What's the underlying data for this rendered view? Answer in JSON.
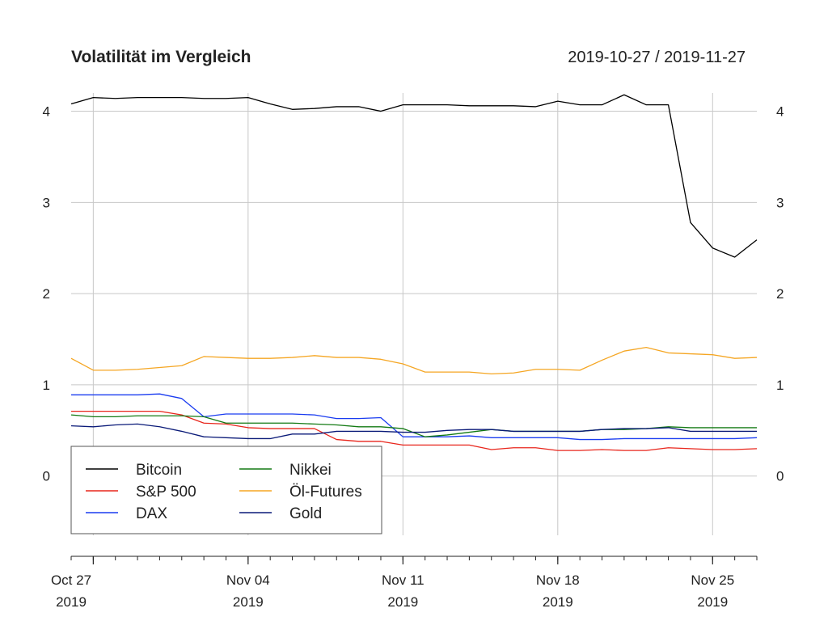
{
  "chart_data": {
    "type": "line",
    "title": "Volatilität im Vergleich",
    "date_range": "2019-10-27 / 2019-11-27",
    "xlabel": "",
    "ylabel": "",
    "x_range": [
      0,
      31
    ],
    "ylim": [
      -0.65,
      4.2
    ],
    "y_ticks": [
      0,
      1,
      2,
      3,
      4
    ],
    "y_tick_labels": [
      "0",
      "1",
      "2",
      "3",
      "4"
    ],
    "x_tick_labels": [
      {
        "pos": 0,
        "line1": "Oct 27",
        "line2": "2019"
      },
      {
        "pos": 8,
        "line1": "Nov 04",
        "line2": "2019"
      },
      {
        "pos": 15,
        "line1": "Nov 11",
        "line2": "2019"
      },
      {
        "pos": 22,
        "line1": "Nov 18",
        "line2": "2019"
      },
      {
        "pos": 29,
        "line1": "Nov 25",
        "line2": "2019"
      }
    ],
    "x_gridlines": [
      1,
      8,
      15,
      22,
      29
    ],
    "grid": true,
    "legend_placement": "bottom-left",
    "x": [
      0,
      1,
      2,
      3,
      4,
      5,
      6,
      7,
      8,
      9,
      10,
      11,
      12,
      13,
      14,
      15,
      16,
      17,
      18,
      19,
      20,
      21,
      22,
      23,
      24,
      25,
      26,
      27,
      28,
      29,
      30,
      31
    ],
    "series": [
      {
        "name": "Bitcoin",
        "color": "#000000",
        "values": [
          4.08,
          4.15,
          4.14,
          4.15,
          4.15,
          4.15,
          4.14,
          4.14,
          4.15,
          4.08,
          4.02,
          4.03,
          4.05,
          4.05,
          4.0,
          4.07,
          4.07,
          4.07,
          4.06,
          4.06,
          4.06,
          4.05,
          4.11,
          4.07,
          4.07,
          4.18,
          4.07,
          4.07,
          2.78,
          2.5,
          2.4,
          2.59
        ]
      },
      {
        "name": "S&P 500",
        "color": "#e8261c",
        "values": [
          0.71,
          0.71,
          0.71,
          0.71,
          0.71,
          0.67,
          0.58,
          0.57,
          0.53,
          0.52,
          0.52,
          0.52,
          0.4,
          0.38,
          0.38,
          0.34,
          0.34,
          0.34,
          0.34,
          0.29,
          0.31,
          0.31,
          0.28,
          0.28,
          0.29,
          0.28,
          0.28,
          0.31,
          0.3,
          0.29,
          0.29,
          0.3
        ]
      },
      {
        "name": "DAX",
        "color": "#1a3cf0",
        "values": [
          0.89,
          0.89,
          0.89,
          0.89,
          0.9,
          0.85,
          0.65,
          0.68,
          0.68,
          0.68,
          0.68,
          0.67,
          0.63,
          0.63,
          0.64,
          0.43,
          0.43,
          0.43,
          0.44,
          0.42,
          0.42,
          0.42,
          0.42,
          0.4,
          0.4,
          0.41,
          0.41,
          0.41,
          0.41,
          0.41,
          0.41,
          0.42
        ]
      },
      {
        "name": "Nikkei",
        "color": "#137a13",
        "values": [
          0.67,
          0.65,
          0.65,
          0.66,
          0.66,
          0.66,
          0.65,
          0.58,
          0.58,
          0.58,
          0.58,
          0.57,
          0.56,
          0.54,
          0.54,
          0.52,
          0.43,
          0.45,
          0.48,
          0.51,
          0.49,
          0.49,
          0.49,
          0.49,
          0.51,
          0.51,
          0.52,
          0.54,
          0.53,
          0.53,
          0.53,
          0.53
        ]
      },
      {
        "name": "Öl-Futures",
        "color": "#f5a623",
        "values": [
          1.29,
          1.16,
          1.16,
          1.17,
          1.19,
          1.21,
          1.31,
          1.3,
          1.29,
          1.29,
          1.3,
          1.32,
          1.3,
          1.3,
          1.28,
          1.23,
          1.14,
          1.14,
          1.14,
          1.12,
          1.13,
          1.17,
          1.17,
          1.16,
          1.27,
          1.37,
          1.41,
          1.35,
          1.34,
          1.33,
          1.29,
          1.3
        ]
      },
      {
        "name": "Gold",
        "color": "#0a1a78",
        "values": [
          0.55,
          0.54,
          0.56,
          0.57,
          0.54,
          0.49,
          0.43,
          0.42,
          0.41,
          0.41,
          0.46,
          0.46,
          0.49,
          0.49,
          0.49,
          0.48,
          0.48,
          0.5,
          0.51,
          0.51,
          0.49,
          0.49,
          0.49,
          0.49,
          0.51,
          0.52,
          0.52,
          0.53,
          0.49,
          0.49,
          0.49,
          0.49
        ]
      }
    ]
  }
}
